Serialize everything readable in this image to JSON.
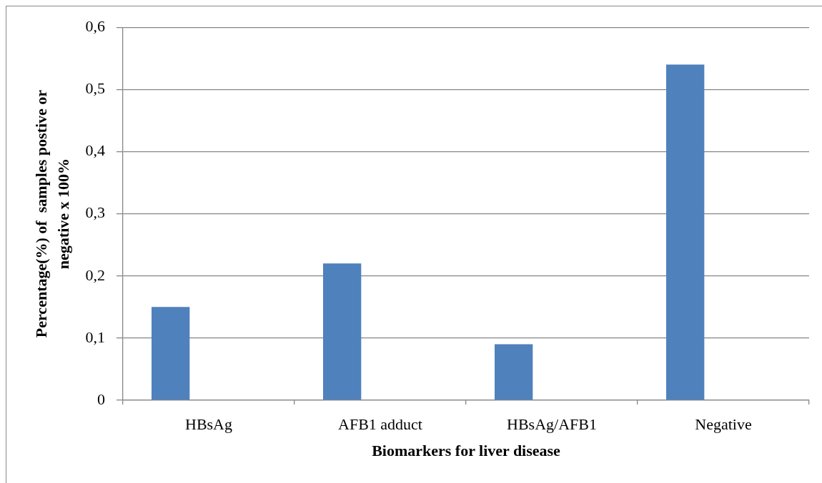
{
  "chart_data": {
    "type": "bar",
    "categories": [
      "HBsAg",
      "AFB1 adduct",
      "HBsAg/AFB1",
      "Negative"
    ],
    "values": [
      0.15,
      0.22,
      0.09,
      0.54
    ],
    "color": "#4f81bd",
    "xlabel": "Biomarkers for liver disease",
    "ylabel": "Percentage(%) of  samples postive or negative x 100%",
    "ylim": [
      0,
      0.6
    ],
    "yticks": [
      0,
      {
        "value": 0.1,
        "label": "0,1"
      },
      {
        "value": 0.2,
        "label": "0,2"
      },
      {
        "value": 0.3,
        "label": "0,3"
      },
      {
        "value": 0.4,
        "label": "0,4"
      },
      {
        "value": 0.5,
        "label": "0,5"
      },
      {
        "value": 0.6,
        "label": "0,6"
      }
    ],
    "grid": "y"
  }
}
